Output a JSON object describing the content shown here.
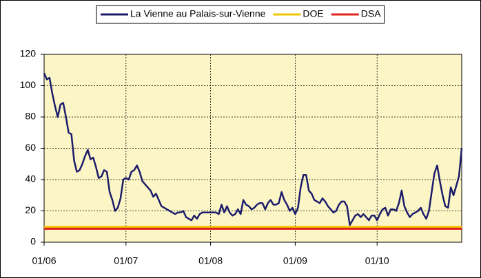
{
  "chart_data": {
    "type": "line",
    "x": [
      0,
      1,
      2,
      3,
      4,
      5,
      6,
      7,
      8,
      9,
      10,
      11,
      12,
      13,
      14,
      15,
      16,
      17,
      18,
      19,
      20,
      21,
      22,
      23,
      24,
      25,
      26,
      27,
      28,
      29,
      30,
      31,
      32,
      33,
      34,
      35,
      36,
      37,
      38,
      39,
      40,
      41,
      42,
      43,
      44,
      45,
      46,
      47,
      48,
      49,
      50,
      51,
      52,
      53,
      54,
      55,
      56,
      57,
      58,
      59,
      60,
      61,
      62,
      63,
      64,
      65,
      66,
      67,
      68,
      69,
      70,
      71,
      72,
      73,
      74,
      75,
      76,
      77,
      78,
      79,
      80,
      81,
      82,
      83,
      84,
      85,
      86,
      87,
      88,
      89,
      90,
      91,
      92,
      93,
      94,
      95,
      96,
      97,
      98,
      99,
      100,
      101,
      102,
      103,
      104,
      105,
      106,
      107,
      108,
      109,
      110,
      111,
      112,
      113,
      114,
      115,
      116,
      117,
      118,
      119,
      120,
      121,
      122,
      123,
      124,
      125,
      126,
      127,
      128,
      129,
      130,
      131,
      132,
      133,
      134,
      135,
      136,
      137,
      138,
      139,
      140,
      141,
      142,
      143,
      144,
      145,
      146,
      147,
      148,
      149,
      150,
      151,
      152,
      153
    ],
    "series": [
      {
        "name": "La Vienne au Palais-sur-Vienne",
        "color": "#1c1c6b",
        "values": [
          108,
          104,
          105,
          95,
          87,
          80,
          88,
          89,
          80,
          70,
          69,
          52,
          45,
          46,
          50,
          55,
          59,
          53,
          54,
          48,
          41,
          42,
          46,
          45,
          32,
          27,
          20,
          22,
          28,
          40,
          41,
          40,
          45,
          46,
          49,
          45,
          39,
          37,
          35,
          33,
          29,
          31,
          27,
          23,
          22,
          21,
          20,
          19,
          18,
          19,
          19,
          20,
          16,
          15,
          14,
          17,
          15,
          18,
          19,
          19,
          19,
          19,
          19,
          19,
          18,
          24,
          19,
          23,
          19,
          17,
          18,
          21,
          18,
          27,
          24,
          23,
          21,
          22,
          24,
          25,
          25,
          21,
          25,
          27,
          24,
          24,
          25,
          32,
          27,
          24,
          20,
          22,
          18,
          22,
          35,
          43,
          43,
          33,
          31,
          27,
          26,
          25,
          28,
          26,
          23,
          21,
          19,
          20,
          24,
          26,
          26,
          23,
          11,
          14,
          17,
          18,
          16,
          18,
          16,
          14,
          17,
          17,
          14,
          18,
          21,
          22,
          17,
          21,
          21,
          20,
          25,
          33,
          23,
          19,
          16,
          18,
          19,
          20,
          22,
          18,
          15,
          20,
          32,
          44,
          49,
          39,
          30,
          23,
          22,
          35,
          30,
          36,
          42,
          60
        ]
      }
    ],
    "hlines": [
      {
        "name": "DOE",
        "color": "#f2c500",
        "value": 9.8
      },
      {
        "name": "DSA",
        "color": "#e0201b",
        "value": 8.6
      }
    ],
    "xlim": [
      0,
      153
    ],
    "xticks": [
      {
        "value": 0,
        "label": "01/06"
      },
      {
        "value": 30,
        "label": "01/07"
      },
      {
        "value": 61,
        "label": "01/08"
      },
      {
        "value": 92,
        "label": "01/09"
      },
      {
        "value": 122,
        "label": "01/10"
      }
    ],
    "ylim": [
      0,
      120
    ],
    "yticks": [
      0,
      20,
      40,
      60,
      80,
      100,
      120
    ],
    "grid": true,
    "background": "#fcf6c6",
    "legend": "top"
  }
}
